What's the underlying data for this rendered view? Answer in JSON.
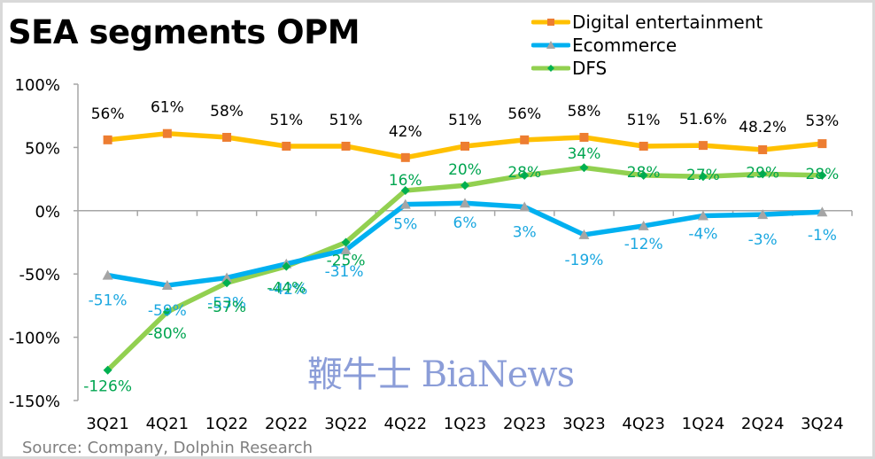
{
  "chart_data": {
    "type": "line",
    "title": "SEA segments OPM",
    "xlabel": "",
    "ylabel": "",
    "ylim": [
      -150,
      100
    ],
    "yticks": [
      100,
      50,
      0,
      -50,
      -100,
      -150
    ],
    "ytick_labels": [
      "100%",
      "50%",
      "0%",
      "-50%",
      "-100%",
      "-150%"
    ],
    "grid": false,
    "legend_position": "top-right",
    "categories": [
      "3Q21",
      "4Q21",
      "1Q22",
      "2Q22",
      "3Q22",
      "4Q22",
      "1Q23",
      "2Q23",
      "3Q23",
      "4Q23",
      "1Q24",
      "2Q24",
      "3Q24"
    ],
    "series": [
      {
        "name": "Digital entertainment",
        "line_color": "#FFC000",
        "marker_color": "#ED7D31",
        "marker": "square",
        "label_color": "#000000",
        "values": [
          56,
          61,
          58,
          51,
          51,
          42,
          51,
          56,
          58,
          51,
          51.6,
          48.2,
          53
        ],
        "labels": [
          "56%",
          "61%",
          "58%",
          "51%",
          "51%",
          "42%",
          "51%",
          "56%",
          "58%",
          "51%",
          "51.6%",
          "48.2%",
          "53%"
        ]
      },
      {
        "name": "Ecommerce",
        "line_color": "#00B0F0",
        "marker_color": "#A5A5A5",
        "marker": "triangle",
        "label_color": "#1AA7E0",
        "values": [
          -51,
          -59,
          -53,
          -42,
          -31,
          5,
          6,
          3,
          -19,
          -12,
          -4,
          -3,
          -1
        ],
        "labels": [
          "-51%",
          "-59%",
          "-53%",
          "-42%",
          "-31%",
          "5%",
          "6%",
          "3%",
          "-19%",
          "-12%",
          "-4%",
          "-3%",
          "-1%"
        ]
      },
      {
        "name": "DFS",
        "line_color": "#92D050",
        "marker_color": "#00B050",
        "marker": "diamond",
        "label_color": "#00A550",
        "values": [
          -126,
          -80,
          -57,
          -44,
          -25,
          16,
          20,
          28,
          34,
          28,
          27,
          29,
          28
        ],
        "labels": [
          "-126%",
          "-80%",
          "-57%",
          "-44%",
          "-25%",
          "16%",
          "20%",
          "28%",
          "34%",
          "28%",
          "27%",
          "29%",
          "28%"
        ]
      }
    ]
  },
  "source": "Source: Company, Dolphin Research",
  "watermark": "鞭牛士 BiaNews"
}
